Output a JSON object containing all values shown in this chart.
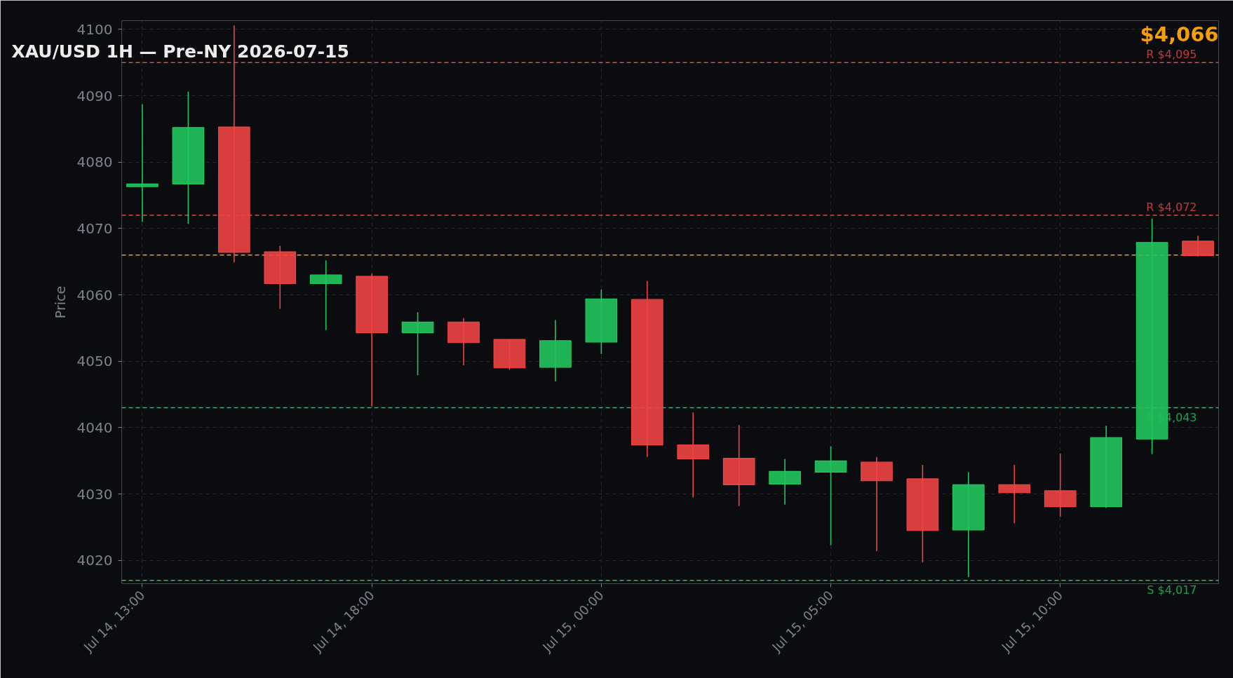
{
  "chart_data": {
    "type": "candlestick",
    "title": "XAU/USD 1H — Pre-NY 2026-07-15",
    "ylabel": "Price",
    "annotations": [
      "$4,066"
    ],
    "categories": [
      "Jul 14, 13:00",
      null,
      null,
      null,
      null,
      "Jul 14, 18:00",
      null,
      null,
      null,
      null,
      "Jul 15, 00:00",
      null,
      null,
      null,
      null,
      "Jul 15, 05:00",
      null,
      null,
      null,
      null,
      "Jul 15, 10:00",
      null,
      null,
      null
    ],
    "ohlc": [
      [
        4076.3,
        4088.7,
        4071.0,
        4076.7
      ],
      [
        4076.7,
        4090.6,
        4070.7,
        4085.2
      ],
      [
        4085.3,
        4100.6,
        4064.9,
        4066.4
      ],
      [
        4066.5,
        4067.4,
        4057.9,
        4061.7
      ],
      [
        4061.7,
        4065.2,
        4054.7,
        4063.0
      ],
      [
        4062.8,
        4063.2,
        4043.2,
        4054.3
      ],
      [
        4054.3,
        4057.4,
        4047.9,
        4055.9
      ],
      [
        4055.9,
        4056.5,
        4049.4,
        4052.8
      ],
      [
        4053.3,
        4053.3,
        4048.7,
        4049.0
      ],
      [
        4049.1,
        4056.2,
        4047.0,
        4053.1
      ],
      [
        4052.9,
        4060.8,
        4051.1,
        4059.4
      ],
      [
        4059.3,
        4062.1,
        4035.6,
        4037.4
      ],
      [
        4037.4,
        4042.3,
        4029.5,
        4035.3
      ],
      [
        4035.4,
        4040.4,
        4028.2,
        4031.4
      ],
      [
        4031.5,
        4035.3,
        4028.4,
        4033.4
      ],
      [
        4033.3,
        4037.2,
        4022.3,
        4035.0
      ],
      [
        4034.8,
        4035.6,
        4021.4,
        4032.0
      ],
      [
        4032.3,
        4034.4,
        4019.7,
        4024.5
      ],
      [
        4024.6,
        4033.3,
        4017.5,
        4031.4
      ],
      [
        4031.4,
        4034.4,
        4025.6,
        4030.2
      ],
      [
        4030.5,
        4036.1,
        4026.6,
        4028.1
      ],
      [
        4028.1,
        4040.3,
        4027.9,
        4038.5
      ],
      [
        4038.3,
        4071.5,
        4036.0,
        4067.9
      ],
      [
        4068.1,
        4068.9,
        4065.8,
        4065.9
      ]
    ],
    "colors": [
      "#22c55e",
      "#22c55e",
      "#ef4444",
      "#ef4444",
      "#22c55e",
      "#ef4444",
      "#22c55e",
      "#ef4444",
      "#ef4444",
      "#22c55e",
      "#22c55e",
      "#ef4444",
      "#ef4444",
      "#ef4444",
      "#22c55e",
      "#22c55e",
      "#ef4444",
      "#ef4444",
      "#22c55e",
      "#ef4444",
      "#ef4444",
      "#22c55e",
      "#22c55e",
      "#ef4444"
    ],
    "ylim": [
      4016.5,
      4101.3
    ],
    "yticks": [
      4020,
      4030,
      4040,
      4050,
      4060,
      4070,
      4080,
      4090,
      4100
    ],
    "grid": true,
    "ref_lines": [
      {
        "axis": "y",
        "value": 4095,
        "label": "R $4,095",
        "color": "#ef4444",
        "line_style": "dashed"
      },
      {
        "axis": "y",
        "value": 4072,
        "label": "R $4,072",
        "color": "#ef4444",
        "line_style": "dashed"
      },
      {
        "axis": "y",
        "value": 4066,
        "color": "#f59e0b",
        "line_style": "dashed"
      },
      {
        "axis": "y",
        "value": 4043,
        "label": "S $4,043",
        "color": "#22c55e",
        "line_style": "dashed"
      },
      {
        "axis": "y",
        "value": 4017,
        "label": "S $4,017",
        "color": "#22c55e",
        "line_style": "dashed"
      }
    ]
  }
}
